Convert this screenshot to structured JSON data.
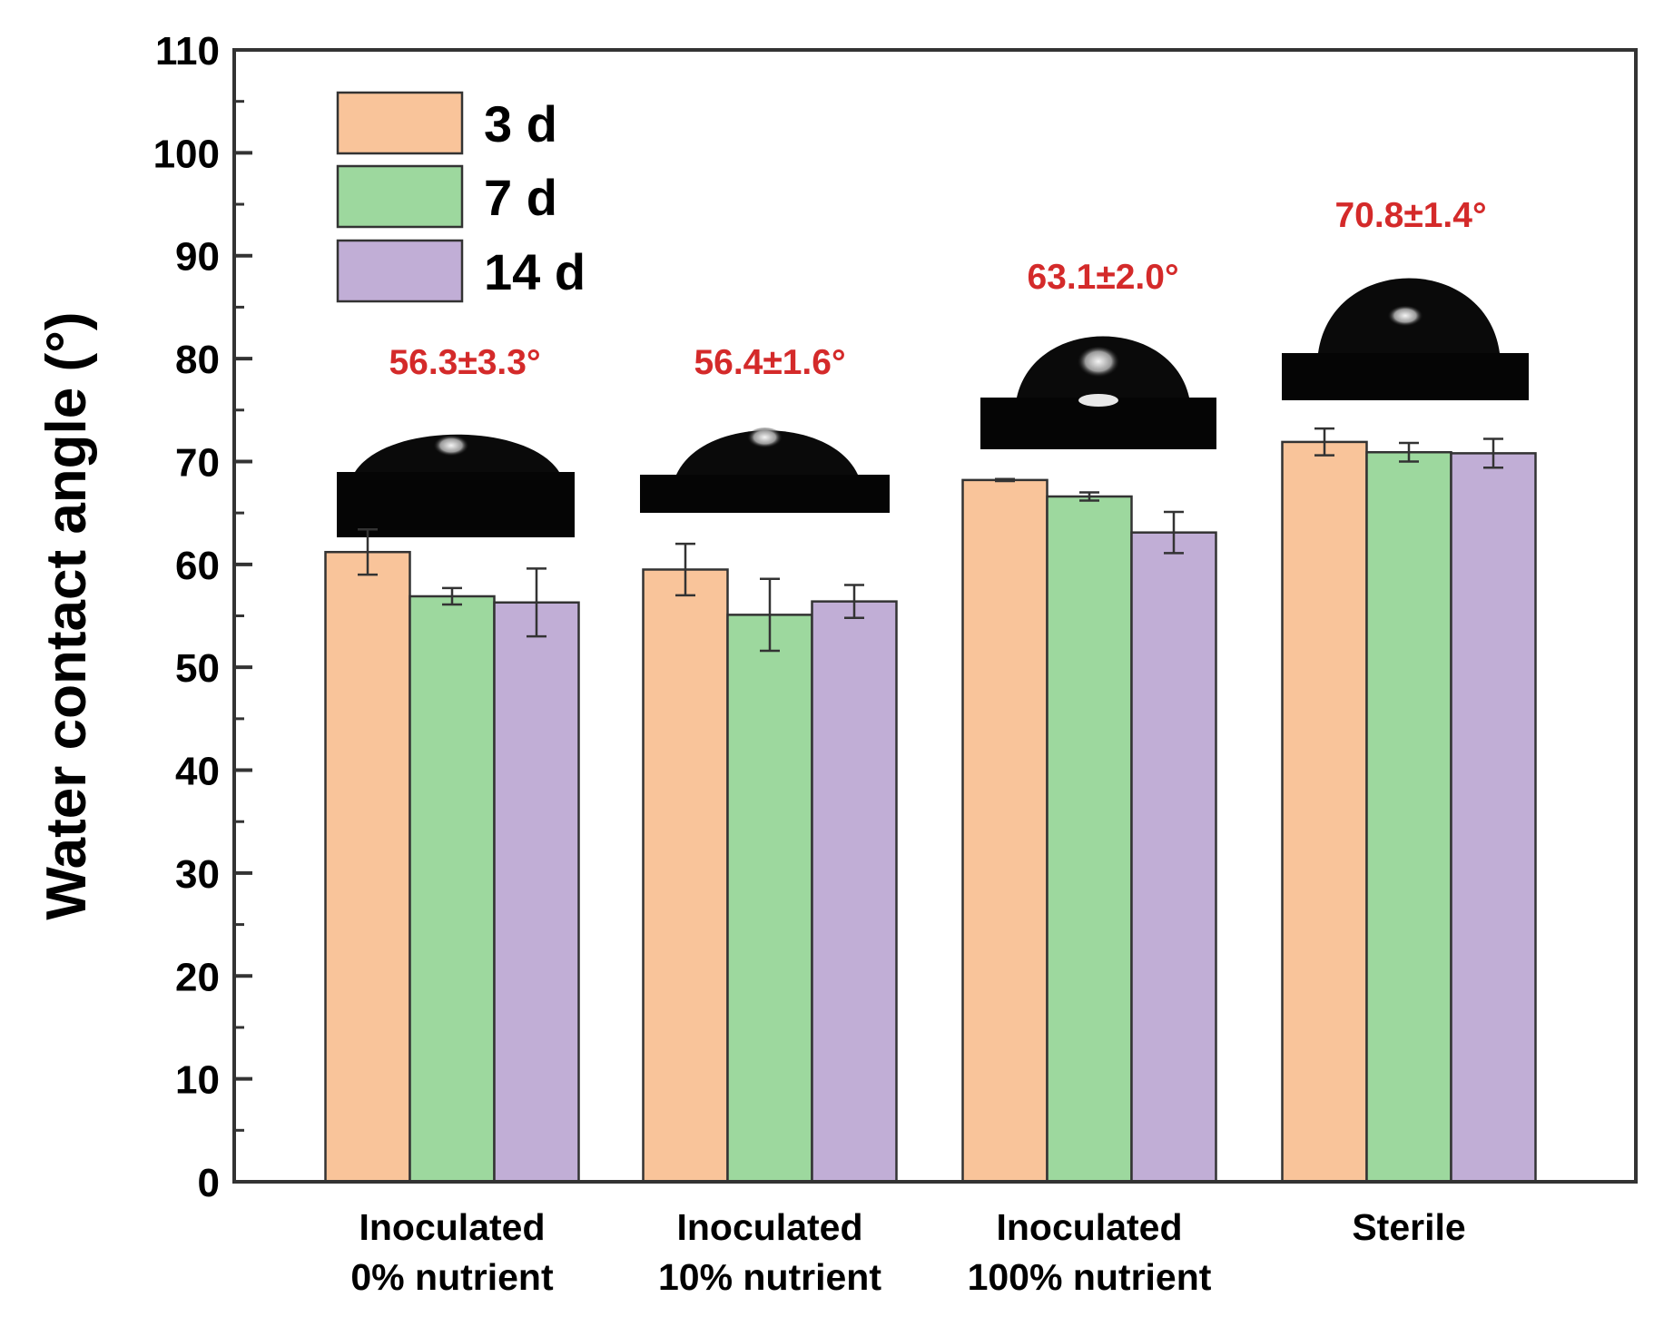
{
  "chart_data": {
    "type": "bar",
    "title": "",
    "xlabel": "",
    "ylabel": "Water contact angle (°)",
    "ylim": [
      0,
      110
    ],
    "yticks": [
      "0",
      "10",
      "20",
      "30",
      "40",
      "50",
      "60",
      "70",
      "80",
      "90",
      "100",
      "110"
    ],
    "categories": [
      [
        "Inoculated",
        "0% nutrient"
      ],
      [
        "Inoculated",
        "10% nutrient"
      ],
      [
        "Inoculated",
        "100% nutrient"
      ],
      [
        "Sterile"
      ]
    ],
    "series": [
      {
        "name": "3 d",
        "color": "#F9C49A",
        "values": [
          61.2,
          59.5,
          68.2,
          71.9
        ],
        "errors": [
          2.2,
          2.5,
          0.1,
          1.3
        ]
      },
      {
        "name": "7 d",
        "color": "#9DD89E",
        "values": [
          56.9,
          55.1,
          66.6,
          70.9
        ],
        "errors": [
          0.8,
          3.5,
          0.4,
          0.9
        ]
      },
      {
        "name": "14 d",
        "color": "#C1AED6",
        "values": [
          56.3,
          56.4,
          63.1,
          70.8
        ],
        "errors": [
          3.3,
          1.6,
          2.0,
          1.4
        ]
      }
    ],
    "annotations": [
      "56.3±3.3°",
      "56.4±1.6°",
      "63.1±2.0°",
      "70.8±1.4°"
    ],
    "annotation_color": "#D42A2A",
    "legend_position": "top-left"
  }
}
